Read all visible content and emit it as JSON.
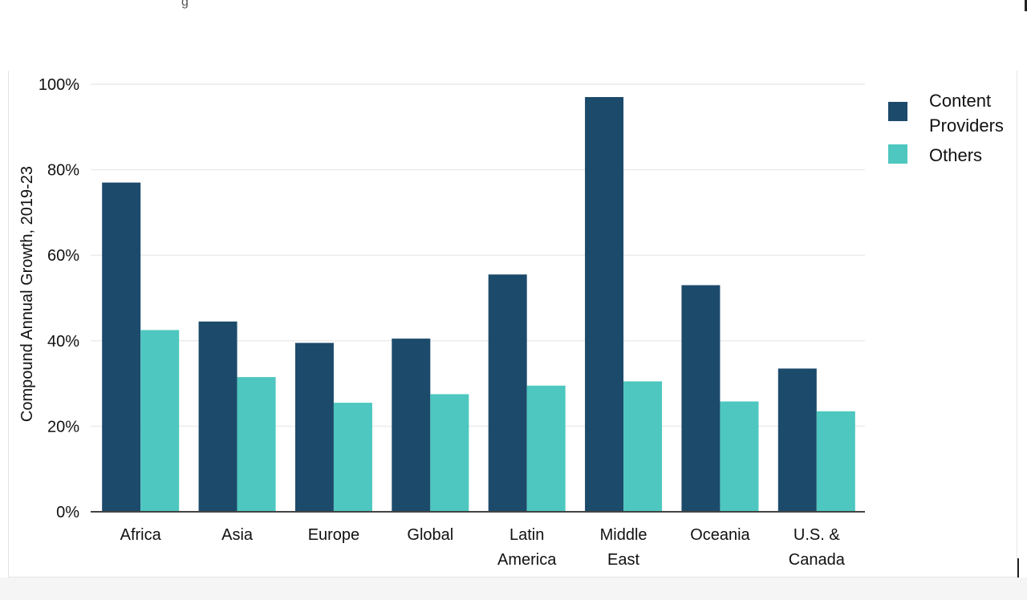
{
  "page": {
    "top_crumb": "g"
  },
  "colors": {
    "content_providers": "#1c4a6b",
    "others": "#4dc7bf",
    "grid": "#ececec",
    "axis": "#444444"
  },
  "chart_data": {
    "type": "bar",
    "ylabel": "Compound Annual Growth, 2019-23",
    "xlabel": "",
    "ylim": [
      0,
      100
    ],
    "y_ticks": [
      "0%",
      "20%",
      "40%",
      "60%",
      "80%",
      "100%"
    ],
    "y_tick_values": [
      0,
      20,
      40,
      60,
      80,
      100
    ],
    "grid": true,
    "legend_position": "top-right",
    "categories": [
      [
        "Africa"
      ],
      [
        "Asia"
      ],
      [
        "Europe"
      ],
      [
        "Global"
      ],
      [
        "Latin",
        "America"
      ],
      [
        "Middle",
        "East"
      ],
      [
        "Oceania"
      ],
      [
        "U.S. &",
        "Canada"
      ]
    ],
    "series": [
      {
        "name": "Content Providers",
        "legend_lines": [
          "Content",
          "Providers"
        ],
        "values": [
          77,
          44.5,
          39.5,
          40.5,
          55.5,
          97,
          53,
          33.5
        ]
      },
      {
        "name": "Others",
        "legend_lines": [
          "Others"
        ],
        "values": [
          42.5,
          31.5,
          25.5,
          27.5,
          29.5,
          30.5,
          25.8,
          23.5
        ]
      }
    ]
  }
}
